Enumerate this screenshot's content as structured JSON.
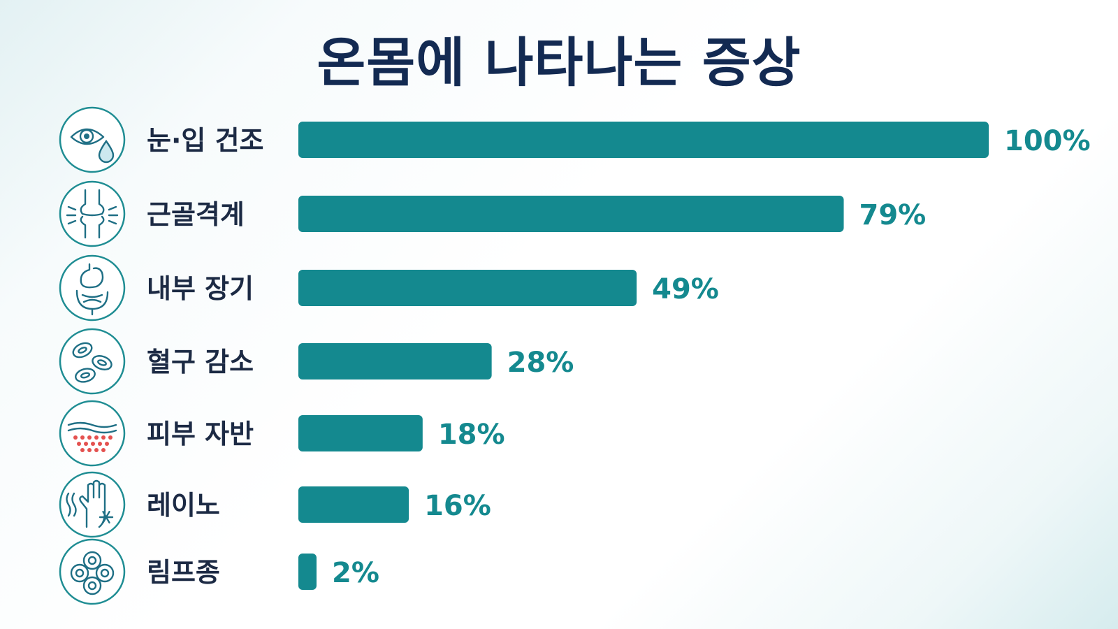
{
  "title": "온몸에 나타나는 증상",
  "chart_data": {
    "type": "bar",
    "orientation": "horizontal",
    "title": "온몸에 나타나는 증상",
    "categories": [
      "눈·입 건조",
      "근골격계",
      "내부 장기",
      "혈구 감소",
      "피부 자반",
      "레이노",
      "림프종"
    ],
    "values": [
      100,
      79,
      49,
      28,
      18,
      16,
      2
    ],
    "value_labels": [
      "100%",
      "79%",
      "49%",
      "28%",
      "18%",
      "16%",
      "2%"
    ],
    "icons": [
      "eye-drop-icon",
      "joint-icon",
      "stomach-intestine-icon",
      "blood-cells-icon",
      "skin-rash-icon",
      "cold-hand-icon",
      "lymph-cells-icon"
    ],
    "xlim": [
      0,
      100
    ],
    "bar_color": "#14898f",
    "label_color": "#1c2a44",
    "value_color": "#14898f",
    "title_color": "#132a52",
    "grid": false,
    "legend": "none"
  }
}
